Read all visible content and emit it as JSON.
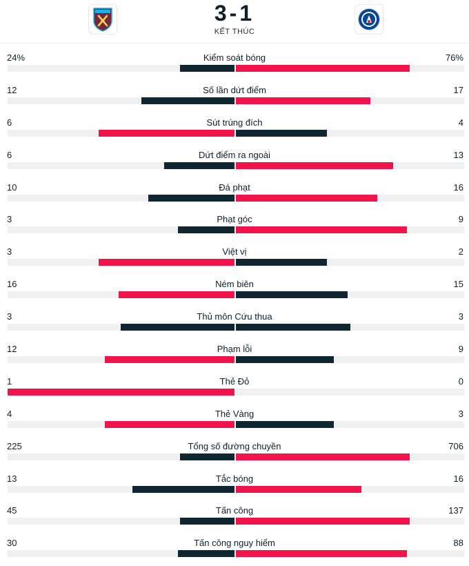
{
  "match": {
    "home_score": "3",
    "separator": "-",
    "away_score": "1",
    "status": "KẾT THÚC",
    "home_crest": "west-ham-crest",
    "away_crest": "chelsea-crest"
  },
  "colors": {
    "leading": "#f2134b",
    "trailing": "#0f2530",
    "track": "#eef0f2"
  },
  "stats": [
    {
      "label": "Kiểm soát bóng",
      "home": "24%",
      "away": "76%",
      "home_value": 24,
      "away_value": 76,
      "home_frac": 0.24,
      "away_frac": 0.76
    },
    {
      "label": "Số lần dứt điểm",
      "home": "12",
      "away": "17",
      "home_value": 12,
      "away_value": 17,
      "home_frac": 0.41,
      "away_frac": 0.59
    },
    {
      "label": "Sút trúng đích",
      "home": "6",
      "away": "4",
      "home_value": 6,
      "away_value": 4,
      "home_frac": 0.6,
      "away_frac": 0.4
    },
    {
      "label": "Dứt điểm ra ngoài",
      "home": "6",
      "away": "13",
      "home_value": 6,
      "away_value": 13,
      "home_frac": 0.31,
      "away_frac": 0.69
    },
    {
      "label": "Đá phạt",
      "home": "10",
      "away": "16",
      "home_value": 10,
      "away_value": 16,
      "home_frac": 0.38,
      "away_frac": 0.62
    },
    {
      "label": "Phạt góc",
      "home": "3",
      "away": "9",
      "home_value": 3,
      "away_value": 9,
      "home_frac": 0.25,
      "away_frac": 0.75
    },
    {
      "label": "Việt vị",
      "home": "3",
      "away": "2",
      "home_value": 3,
      "away_value": 2,
      "home_frac": 0.6,
      "away_frac": 0.4
    },
    {
      "label": "Ném biên",
      "home": "16",
      "away": "15",
      "home_value": 16,
      "away_value": 15,
      "home_frac": 0.51,
      "away_frac": 0.49
    },
    {
      "label": "Thủ môn Cứu thua",
      "home": "3",
      "away": "3",
      "home_value": 3,
      "away_value": 3,
      "home_frac": 0.5,
      "away_frac": 0.5
    },
    {
      "label": "Phạm lỗi",
      "home": "12",
      "away": "9",
      "home_value": 12,
      "away_value": 9,
      "home_frac": 0.57,
      "away_frac": 0.43
    },
    {
      "label": "Thẻ Đỏ",
      "home": "1",
      "away": "0",
      "home_value": 1,
      "away_value": 0,
      "home_frac": 1.0,
      "away_frac": 0.0
    },
    {
      "label": "Thẻ Vàng",
      "home": "4",
      "away": "3",
      "home_value": 4,
      "away_value": 3,
      "home_frac": 0.57,
      "away_frac": 0.43
    },
    {
      "label": "Tổng số đường chuyền",
      "home": "225",
      "away": "706",
      "home_value": 225,
      "away_value": 706,
      "home_frac": 0.24,
      "away_frac": 0.76
    },
    {
      "label": "Tắc bóng",
      "home": "13",
      "away": "16",
      "home_value": 13,
      "away_value": 16,
      "home_frac": 0.45,
      "away_frac": 0.55
    },
    {
      "label": "Tấn công",
      "home": "45",
      "away": "137",
      "home_value": 45,
      "away_value": 137,
      "home_frac": 0.24,
      "away_frac": 0.76
    },
    {
      "label": "Tấn công nguy hiểm",
      "home": "30",
      "away": "88",
      "home_value": 30,
      "away_value": 88,
      "home_frac": 0.25,
      "away_frac": 0.75
    }
  ]
}
